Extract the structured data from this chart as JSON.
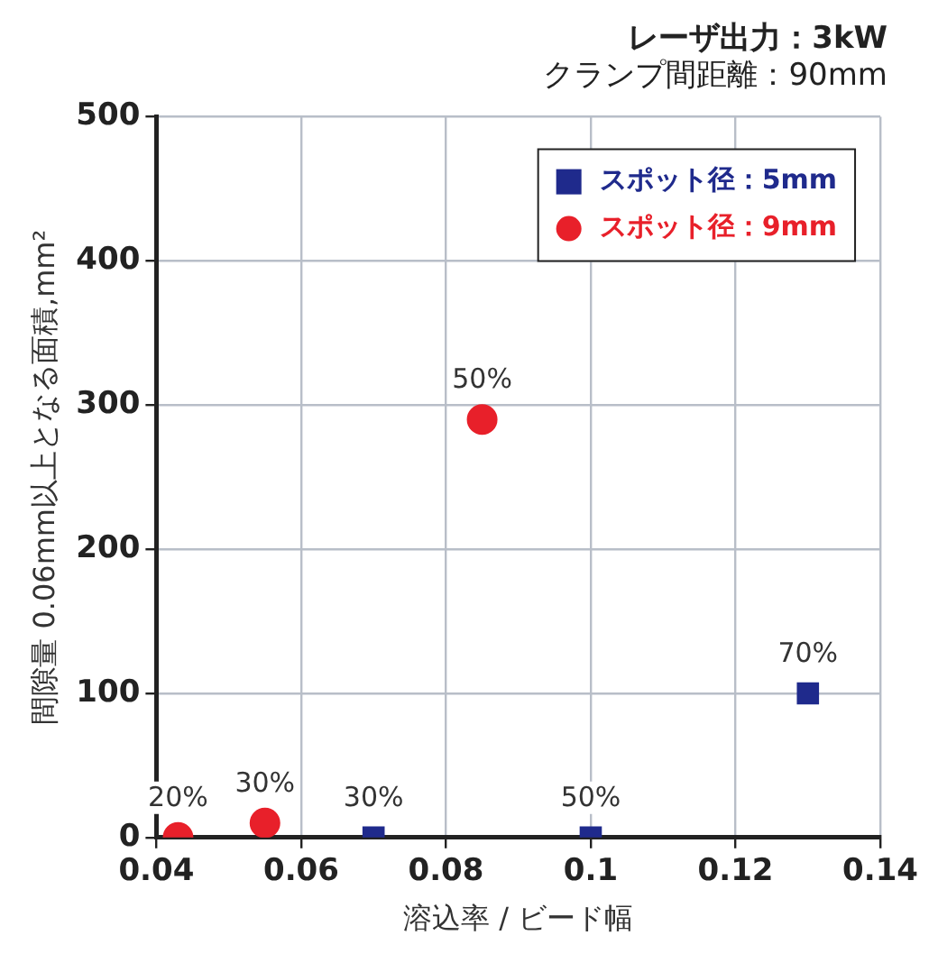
{
  "chart_data": {
    "type": "scatter",
    "title": "レーザ出力：3kW",
    "subtitle": "クランプ間距離：90mm",
    "xlabel": "溶込率 / ビード幅",
    "ylabel": "間隙量 0.06mm以上となる面積,mm²",
    "series": [
      {
        "name": "スポット径：5mm",
        "color": "#1f2a8c",
        "marker": "square",
        "x": [
          0.07,
          0.1,
          0.13
        ],
        "values": [
          0,
          0,
          100
        ]
      },
      {
        "name": "スポット径：9mm",
        "color": "#e8202a",
        "marker": "circle",
        "x": [
          0.043,
          0.055,
          0.085
        ],
        "values": [
          0,
          10,
          290
        ]
      }
    ],
    "xlim": [
      0.04,
      0.14
    ],
    "xticks": [
      0.04,
      0.06,
      0.08,
      {
        "value": 0.1,
        "label": "0.1"
      },
      0.12,
      0.14
    ],
    "ylim": [
      0,
      500
    ],
    "yticks": [
      0,
      100,
      200,
      300,
      400,
      500
    ],
    "grid": true,
    "legend": "top right",
    "annotations": [
      {
        "text": "20%",
        "x": 0.043,
        "y": 0
      },
      {
        "text": "30%",
        "x": 0.055,
        "y": 10
      },
      {
        "text": "50%",
        "x": 0.085,
        "y": 290
      },
      {
        "text": "30%",
        "x": 0.07,
        "y": 0
      },
      {
        "text": "50%",
        "x": 0.1,
        "y": 0
      },
      {
        "text": "70%",
        "x": 0.13,
        "y": 100
      }
    ]
  }
}
